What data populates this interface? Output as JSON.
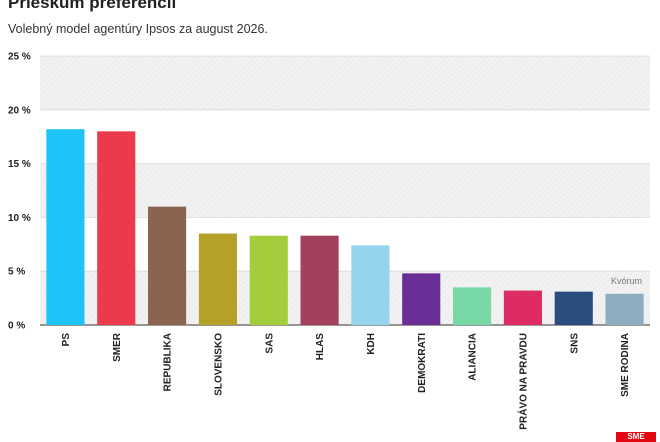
{
  "header": {
    "title": "Prieskum preferencií",
    "subtitle": "Volebný model agentúry Ipsos za august 2026."
  },
  "brand": {
    "logo_text": "SME",
    "color": "#e30613"
  },
  "chart_data": {
    "type": "bar",
    "title": "Prieskum preferencií",
    "subtitle": "Volebný model agentúry Ipsos za august 2026.",
    "xlabel": "",
    "ylabel": "",
    "ylim": [
      0,
      25
    ],
    "yticks": [
      0,
      5,
      10,
      15,
      20,
      25
    ],
    "ytick_labels": [
      "0 %",
      "5 %",
      "10 %",
      "15 %",
      "20 %",
      "25 %"
    ],
    "grid": true,
    "legend": "none",
    "categories": [
      "PS",
      "SMER",
      "REPUBLIKA",
      "SLOVENSKO",
      "SAS",
      "HLAS",
      "KDH",
      "DEMOKRATI",
      "ALIANCIA",
      "PRÁVO NA PRAVDU",
      "SNS",
      "SME RODINA"
    ],
    "values": [
      18.2,
      18.0,
      11.0,
      8.5,
      8.3,
      8.3,
      7.4,
      4.8,
      3.5,
      3.2,
      3.1,
      2.9
    ],
    "colors": [
      "#1ec3f9",
      "#ec3a4c",
      "#8a6450",
      "#b5a12a",
      "#a3cd3c",
      "#a3405e",
      "#95d3ee",
      "#6b2d96",
      "#78d9a6",
      "#dd2b63",
      "#294d7c",
      "#8eacbf"
    ],
    "annotations": [
      {
        "text": "Kvórum",
        "y": 5
      }
    ]
  }
}
